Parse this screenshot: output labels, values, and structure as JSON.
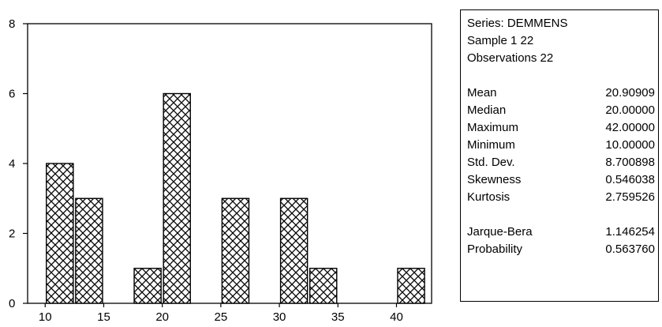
{
  "chart_data": {
    "type": "bar",
    "title": "",
    "xlabel": "",
    "ylabel": "",
    "xlim": [
      8.5,
      43
    ],
    "ylim": [
      0,
      8
    ],
    "bin_width": 2.5,
    "x_ticks": [
      10,
      15,
      20,
      25,
      30,
      35,
      40
    ],
    "y_ticks": [
      0,
      2,
      4,
      6,
      8
    ],
    "bins": [
      {
        "center": 11.25,
        "value": 4
      },
      {
        "center": 13.75,
        "value": 3
      },
      {
        "center": 16.25,
        "value": 0
      },
      {
        "center": 18.75,
        "value": 1
      },
      {
        "center": 21.25,
        "value": 6
      },
      {
        "center": 23.75,
        "value": 0
      },
      {
        "center": 26.25,
        "value": 3
      },
      {
        "center": 28.75,
        "value": 0
      },
      {
        "center": 31.25,
        "value": 3
      },
      {
        "center": 33.75,
        "value": 1
      },
      {
        "center": 36.25,
        "value": 0
      },
      {
        "center": 38.75,
        "value": 0
      },
      {
        "center": 41.25,
        "value": 1
      }
    ],
    "grid": false,
    "bar_fill": "crosshatch",
    "colors": {
      "bar_stroke": "#000000",
      "background": "#ffffff"
    }
  },
  "stats": {
    "series_line": "Series: DEMMENS",
    "sample_line": "Sample 1 22",
    "observations_line": "Observations 22",
    "rows": [
      {
        "label": "Mean",
        "value": "20.90909"
      },
      {
        "label": "Median",
        "value": "20.00000"
      },
      {
        "label": "Maximum",
        "value": "42.00000"
      },
      {
        "label": "Minimum",
        "value": "10.00000"
      },
      {
        "label": "Std. Dev.",
        "value": "8.700898"
      },
      {
        "label": "Skewness",
        "value": "0.546038"
      },
      {
        "label": "Kurtosis",
        "value": "2.759526"
      }
    ],
    "tests": [
      {
        "label": "Jarque-Bera",
        "value": "1.146254"
      },
      {
        "label": "Probability",
        "value": "0.563760"
      }
    ]
  }
}
